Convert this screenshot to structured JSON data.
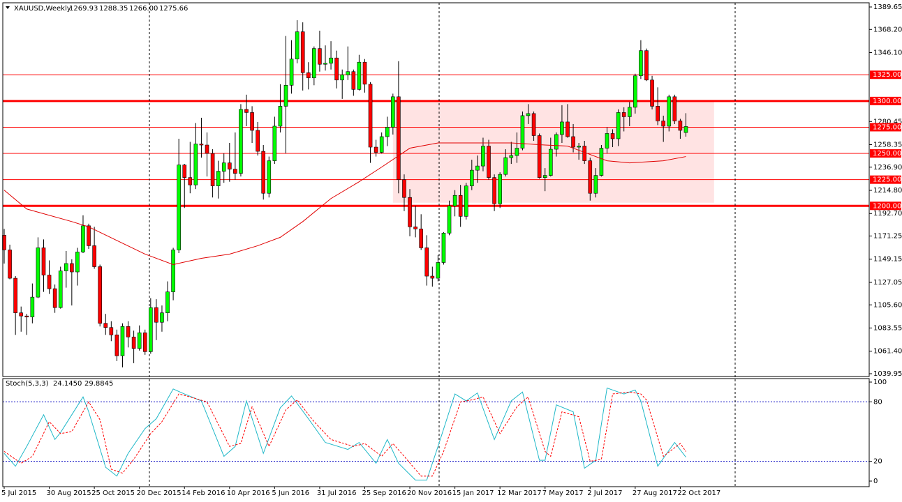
{
  "chart_data": [
    {
      "type": "candlestick",
      "title": "XAUUSD,Weekly",
      "ohlc_labels": [
        "1269.93",
        "1288.35",
        "1266.00",
        "1275.66"
      ],
      "up_color": "#00ff00",
      "down_color": "#ff0000",
      "categories": [
        "5 Jul 2015",
        null,
        null,
        null,
        null,
        null,
        null,
        null,
        "30 Aug 2015",
        null,
        null,
        null,
        null,
        null,
        null,
        null,
        "25 Oct 2015",
        null,
        null,
        null,
        null,
        null,
        null,
        null,
        "20 Dec 2015",
        null,
        null,
        null,
        null,
        null,
        null,
        null,
        "14 Feb 2016",
        null,
        null,
        null,
        null,
        null,
        null,
        null,
        "10 Apr 2016",
        null,
        null,
        null,
        null,
        null,
        null,
        null,
        "5 Jun 2016",
        null,
        null,
        null,
        null,
        null,
        null,
        null,
        "31 Jul 2016",
        null,
        null,
        null,
        null,
        null,
        null,
        null,
        "25 Sep 2016",
        null,
        null,
        null,
        null,
        null,
        null,
        null,
        "20 Nov 2016",
        null,
        null,
        null,
        null,
        null,
        null,
        null,
        "15 Jan 2017",
        null,
        null,
        null,
        null,
        null,
        null,
        null,
        "12 Mar 2017",
        null,
        null,
        null,
        null,
        null,
        null,
        null,
        "7 May 2017",
        null,
        null,
        null,
        null,
        null,
        null,
        null,
        "2 Jul 2017",
        null,
        null,
        null,
        null,
        null,
        null,
        null,
        "27 Aug 2017",
        null,
        null,
        null,
        null,
        null,
        null,
        null,
        "22 Oct 2017",
        null
      ],
      "open": [
        1172,
        1158,
        1131,
        1098,
        1095,
        1094,
        1113,
        1160,
        1134,
        1121,
        1103,
        1138,
        1145,
        1137,
        1156,
        1181,
        1162,
        1142,
        1088,
        1084,
        1077,
        1057,
        1085,
        1075,
        1064,
        1079,
        1061,
        1103,
        1089,
        1098,
        1118,
        1158,
        1239,
        1227,
        1220,
        1259,
        1258,
        1250,
        1219,
        1233,
        1241,
        1235,
        1231,
        1292,
        1289,
        1272,
        1252,
        1212,
        1243,
        1276,
        1295,
        1315,
        1340,
        1366,
        1327,
        1322,
        1350,
        1335,
        1336,
        1341,
        1320,
        1325,
        1328,
        1311,
        1337,
        1316,
        1256,
        1251,
        1266,
        1275,
        1304,
        1225,
        1208,
        1180,
        1178,
        1160,
        1133,
        1131,
        1146,
        1174,
        1200,
        1210,
        1190,
        1219,
        1234,
        1238,
        1257,
        1227,
        1202,
        1230,
        1246,
        1248,
        1255,
        1286,
        1288,
        1267,
        1227,
        1229,
        1254,
        1268,
        1280,
        1266,
        1256,
        1257,
        1243,
        1212,
        1229,
        1255,
        1269,
        1264,
        1289,
        1285,
        1294,
        1324,
        1348,
        1320,
        1295,
        1281,
        1276,
        1304,
        1281,
        1269.93
      ],
      "high": [
        1178,
        1163,
        1133,
        1104,
        1097,
        1126,
        1170,
        1168,
        1148,
        1125,
        1142,
        1157,
        1149,
        1160,
        1191,
        1183,
        1180,
        1144,
        1097,
        1090,
        1082,
        1088,
        1090,
        1081,
        1086,
        1082,
        1112,
        1111,
        1105,
        1128,
        1160,
        1264,
        1240,
        1261,
        1279,
        1284,
        1270,
        1254,
        1243,
        1250,
        1260,
        1270,
        1297,
        1306,
        1295,
        1280,
        1258,
        1247,
        1285,
        1316,
        1362,
        1358,
        1377,
        1375,
        1337,
        1352,
        1367,
        1353,
        1357,
        1348,
        1330,
        1352,
        1330,
        1344,
        1340,
        1318,
        1263,
        1270,
        1285,
        1307,
        1338,
        1230,
        1216,
        1200,
        1192,
        1172,
        1142,
        1153,
        1175,
        1205,
        1215,
        1220,
        1222,
        1244,
        1248,
        1265,
        1263,
        1230,
        1232,
        1254,
        1261,
        1270,
        1290,
        1297,
        1290,
        1269,
        1236,
        1265,
        1270,
        1296,
        1297,
        1278,
        1260,
        1262,
        1246,
        1236,
        1258,
        1275,
        1273,
        1292,
        1294,
        1299,
        1326,
        1358,
        1350,
        1324,
        1313,
        1286,
        1306,
        1306,
        1283,
        1288.35
      ],
      "low": [
        1145,
        1130,
        1077,
        1080,
        1077,
        1088,
        1112,
        1118,
        1116,
        1098,
        1102,
        1122,
        1105,
        1124,
        1155,
        1159,
        1140,
        1085,
        1077,
        1071,
        1052,
        1046,
        1065,
        1050,
        1062,
        1058,
        1059,
        1072,
        1080,
        1090,
        1110,
        1155,
        1198,
        1212,
        1216,
        1246,
        1228,
        1208,
        1207,
        1222,
        1223,
        1225,
        1228,
        1276,
        1260,
        1248,
        1206,
        1208,
        1240,
        1270,
        1250,
        1307,
        1336,
        1310,
        1311,
        1315,
        1328,
        1329,
        1330,
        1312,
        1302,
        1320,
        1305,
        1310,
        1308,
        1241,
        1247,
        1250,
        1257,
        1268,
        1212,
        1195,
        1171,
        1170,
        1158,
        1124,
        1123,
        1128,
        1144,
        1172,
        1190,
        1180,
        1187,
        1215,
        1222,
        1233,
        1225,
        1195,
        1198,
        1228,
        1240,
        1241,
        1253,
        1278,
        1262,
        1226,
        1214,
        1228,
        1247,
        1260,
        1265,
        1251,
        1244,
        1240,
        1205,
        1208,
        1228,
        1250,
        1256,
        1257,
        1271,
        1276,
        1288,
        1321,
        1319,
        1292,
        1277,
        1261,
        1271,
        1278,
        1264,
        1266
      ],
      "close": [
        1158,
        1131,
        1098,
        1095,
        1094,
        1113,
        1160,
        1134,
        1121,
        1103,
        1138,
        1145,
        1137,
        1156,
        1181,
        1162,
        1142,
        1088,
        1084,
        1077,
        1057,
        1085,
        1075,
        1064,
        1079,
        1061,
        1103,
        1089,
        1098,
        1118,
        1158,
        1239,
        1227,
        1220,
        1259,
        1258,
        1250,
        1219,
        1233,
        1241,
        1235,
        1231,
        1292,
        1289,
        1272,
        1252,
        1212,
        1243,
        1276,
        1295,
        1315,
        1340,
        1366,
        1327,
        1322,
        1350,
        1335,
        1336,
        1341,
        1320,
        1325,
        1328,
        1311,
        1337,
        1316,
        1256,
        1251,
        1266,
        1275,
        1304,
        1225,
        1208,
        1180,
        1178,
        1160,
        1133,
        1131,
        1146,
        1174,
        1200,
        1210,
        1190,
        1219,
        1234,
        1238,
        1257,
        1227,
        1202,
        1230,
        1246,
        1248,
        1255,
        1286,
        1288,
        1267,
        1227,
        1229,
        1254,
        1268,
        1280,
        1266,
        1256,
        1257,
        1243,
        1212,
        1229,
        1255,
        1269,
        1264,
        1289,
        1285,
        1294,
        1324,
        1348,
        1320,
        1295,
        1281,
        1276,
        1304,
        1281,
        1272,
        1275.66
      ],
      "ma": {
        "color": "#e00000",
        "x": [
          0,
          4,
          12,
          15,
          20,
          25,
          30,
          35,
          40,
          45,
          49,
          53,
          58,
          63,
          67,
          72,
          77,
          83,
          90,
          96,
          100,
          103,
          107,
          111,
          117,
          121
        ],
        "values": [
          1215,
          1197,
          1185,
          1180,
          1167,
          1154,
          1144,
          1150,
          1154,
          1162,
          1170,
          1185,
          1207,
          1223,
          1237,
          1255,
          1260,
          1260,
          1260,
          1258,
          1257,
          1251,
          1243,
          1241,
          1243,
          1247
        ]
      },
      "zone": {
        "start": 69,
        "end": 126,
        "top": 1300,
        "bottom": 1203,
        "color": "#ffdede"
      },
      "ylim": [
        1039.95,
        1389.65
      ],
      "yticks": [
        {
          "value": 1389.65,
          "label": "1389.65"
        },
        {
          "value": 1368.2,
          "label": "1368.20"
        },
        {
          "value": 1346.1,
          "label": "1346.10"
        },
        {
          "value": 1280.45,
          "label": "1280.45"
        },
        {
          "value": 1258.35,
          "label": "1258.35"
        },
        {
          "value": 1236.9,
          "label": "1236.90"
        },
        {
          "value": 1214.8,
          "label": "1214.80"
        },
        {
          "value": 1192.7,
          "label": "1192.70"
        },
        {
          "value": 1171.25,
          "label": "1171.25"
        },
        {
          "value": 1149.15,
          "label": "1149.15"
        },
        {
          "value": 1127.05,
          "label": "1127.05"
        },
        {
          "value": 1105.6,
          "label": "1105.60"
        },
        {
          "value": 1083.55,
          "label": "1083.55"
        },
        {
          "value": 1061.4,
          "label": "1061.40"
        },
        {
          "value": 1039.95,
          "label": "1039.95"
        }
      ],
      "levels": [
        {
          "value": 1325,
          "label": "1325.00",
          "width": 1
        },
        {
          "value": 1300,
          "label": "1300.00",
          "width": 3
        },
        {
          "value": 1275,
          "label": "1275.00",
          "width": 1
        },
        {
          "value": 1250,
          "label": "1250.00",
          "width": 1
        },
        {
          "value": 1225,
          "label": "1225.00",
          "width": 1
        },
        {
          "value": 1200,
          "label": "1200.00",
          "width": 3
        }
      ],
      "level_color": "#ff0000",
      "grid": false
    },
    {
      "type": "line",
      "title": "Stoch(5,3,3)",
      "series": [
        {
          "color": "#20b8c8",
          "dashed": false,
          "last_label": "24.1450",
          "x": [
            0,
            2,
            4,
            7,
            9,
            10,
            14,
            15,
            18,
            20,
            22,
            25,
            27,
            30,
            32,
            35,
            39,
            41,
            43,
            46,
            49,
            51,
            54,
            57,
            61,
            63,
            66,
            68,
            70,
            73,
            75,
            77,
            80,
            82,
            84,
            87,
            90,
            92,
            95,
            96,
            98,
            101,
            103,
            105,
            107,
            110,
            112,
            113,
            116,
            119,
            121
          ],
          "values": [
            28,
            15,
            35,
            67,
            42,
            49,
            85,
            70,
            14,
            5,
            28,
            53,
            63,
            93,
            88,
            81,
            25,
            35,
            81,
            28,
            74,
            86,
            63,
            39,
            32,
            39,
            18,
            42,
            18,
            1,
            1,
            35,
            88,
            81,
            89,
            42,
            81,
            90,
            21,
            21,
            77,
            70,
            13,
            21,
            94,
            88,
            92,
            81,
            15,
            39,
            24.145
          ]
        },
        {
          "color": "#ff0000",
          "dashed": true,
          "last_label": "29.8845",
          "x": [
            0,
            3,
            5,
            8,
            10,
            12,
            15,
            17,
            19,
            21,
            23,
            26,
            28,
            31,
            33,
            36,
            40,
            42,
            44,
            47,
            50,
            52,
            55,
            58,
            62,
            64,
            67,
            69,
            71,
            74,
            76,
            78,
            81,
            83,
            85,
            88,
            91,
            93,
            96,
            97,
            99,
            102,
            104,
            106,
            108,
            111,
            113,
            114,
            117,
            120,
            121
          ],
          "values": [
            30,
            18,
            25,
            60,
            48,
            50,
            80,
            62,
            12,
            8,
            22,
            48,
            60,
            88,
            85,
            80,
            35,
            38,
            75,
            35,
            72,
            82,
            60,
            42,
            35,
            38,
            25,
            38,
            25,
            5,
            5,
            30,
            80,
            82,
            85,
            48,
            75,
            85,
            30,
            25,
            70,
            65,
            20,
            22,
            88,
            90,
            88,
            82,
            25,
            38,
            29.8845
          ]
        }
      ],
      "ylim": [
        0,
        100
      ],
      "yticks": [
        100,
        80,
        20,
        0
      ],
      "levels": [
        80,
        20
      ],
      "level_color": "#0000c0",
      "grid": false
    }
  ]
}
